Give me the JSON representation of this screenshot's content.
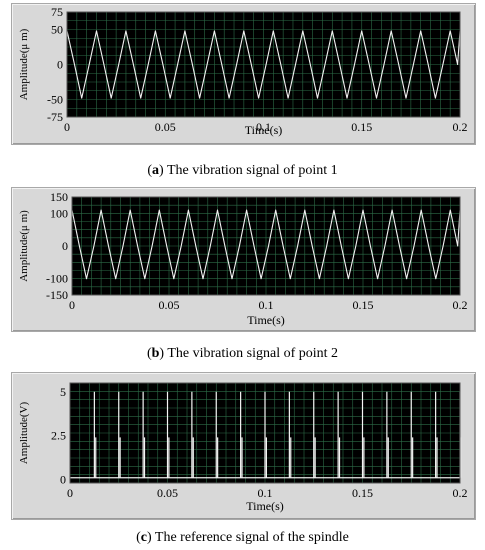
{
  "chart_data": [
    {
      "type": "line",
      "caption_tag": "a",
      "caption_text": "The vibration signal of point 1",
      "xlabel": "Time(s)",
      "ylabel": "Amplitude(μ m)",
      "xlim": [
        0,
        0.2
      ],
      "ylim": [
        -75,
        75
      ],
      "xticks": [
        "0",
        "0.05",
        "0.1",
        "0.15",
        "0.2"
      ],
      "yticks": [
        "75",
        "50",
        "0",
        "-50",
        "-75"
      ],
      "grid": true,
      "series": [
        {
          "x": [
            0,
            0.0038,
            0.0075,
            0.0113,
            0.015,
            0.0188,
            0.0225,
            0.0263,
            0.03,
            0.0338,
            0.0375,
            0.0413,
            0.045,
            0.0488,
            0.0525,
            0.0563,
            0.06,
            0.0638,
            0.0675,
            0.0713,
            0.075,
            0.0788,
            0.0825,
            0.0863,
            0.09,
            0.0938,
            0.0975,
            0.1013,
            0.105,
            0.1088,
            0.1125,
            0.1163,
            0.12,
            0.1238,
            0.1275,
            0.1313,
            0.135,
            0.1388,
            0.1425,
            0.1463,
            0.15,
            0.1538,
            0.1575,
            0.1613,
            0.165,
            0.1688,
            0.1725,
            0.1763,
            0.18,
            0.1838,
            0.1875,
            0.1913,
            0.195,
            0.1988,
            0.2
          ],
          "y": [
            48,
            0,
            -48,
            0,
            48,
            0,
            -48,
            0,
            48,
            0,
            -48,
            0,
            48,
            0,
            -48,
            0,
            48,
            0,
            -48,
            0,
            48,
            0,
            -48,
            0,
            48,
            0,
            -48,
            0,
            48,
            0,
            -48,
            0,
            48,
            0,
            -48,
            0,
            48,
            0,
            -48,
            0,
            48,
            0,
            -48,
            0,
            48,
            0,
            -48,
            0,
            48,
            0,
            -48,
            0,
            48,
            0,
            48
          ]
        }
      ]
    },
    {
      "type": "line",
      "caption_tag": "b",
      "caption_text": "The vibration signal of point 2",
      "xlabel": "Time(s)",
      "ylabel": "Amplitude(μ m)",
      "xlim": [
        0,
        0.2
      ],
      "ylim": [
        -150,
        150
      ],
      "xticks": [
        "0",
        "0.05",
        "0.1",
        "0.15",
        "0.2"
      ],
      "yticks": [
        "150",
        "100",
        "0",
        "-100",
        "-150"
      ],
      "grid": true,
      "series": [
        {
          "x": [
            0,
            0.0038,
            0.0075,
            0.0113,
            0.015,
            0.0188,
            0.0225,
            0.0263,
            0.03,
            0.0338,
            0.0375,
            0.0413,
            0.045,
            0.0488,
            0.0525,
            0.0563,
            0.06,
            0.0638,
            0.0675,
            0.0713,
            0.075,
            0.0788,
            0.0825,
            0.0863,
            0.09,
            0.0938,
            0.0975,
            0.1013,
            0.105,
            0.1088,
            0.1125,
            0.1163,
            0.12,
            0.1238,
            0.1275,
            0.1313,
            0.135,
            0.1388,
            0.1425,
            0.1463,
            0.15,
            0.1538,
            0.1575,
            0.1613,
            0.165,
            0.1688,
            0.1725,
            0.1763,
            0.18,
            0.1838,
            0.1875,
            0.1913,
            0.195,
            0.1988,
            0.2
          ],
          "y": [
            110,
            0,
            -100,
            0,
            110,
            0,
            -100,
            0,
            110,
            0,
            -100,
            0,
            110,
            0,
            -100,
            0,
            110,
            0,
            -100,
            0,
            110,
            0,
            -100,
            0,
            110,
            0,
            -100,
            0,
            110,
            0,
            -100,
            0,
            110,
            0,
            -100,
            0,
            110,
            0,
            -100,
            0,
            110,
            0,
            -100,
            0,
            110,
            0,
            -100,
            0,
            110,
            0,
            -100,
            0,
            110,
            0,
            110
          ]
        }
      ]
    },
    {
      "type": "line",
      "caption_tag": "c",
      "caption_text": "The reference signal of the spindle",
      "xlabel": "Time(s)",
      "ylabel": "Amplitude(V)",
      "xlim": [
        0,
        0.2
      ],
      "ylim": [
        -0.2,
        5.5
      ],
      "xticks": [
        "0",
        "0.05",
        "0.1",
        "0.15",
        "0.2"
      ],
      "yticks": [
        "5",
        "2.5",
        "0"
      ],
      "grid": true,
      "pulses": {
        "tall_x": [
          0.0125,
          0.025,
          0.0375,
          0.05,
          0.0625,
          0.075,
          0.0875,
          0.1,
          0.1125,
          0.125,
          0.1375,
          0.15,
          0.1625,
          0.175,
          0.1875,
          0.2
        ],
        "tall_y": 5,
        "short_x": [
          0.0127,
          0.0252,
          0.0377,
          0.0502,
          0.0627,
          0.0752,
          0.0877,
          0.1002,
          0.1127,
          0.1252,
          0.1377,
          0.1502,
          0.1627,
          0.1752,
          0.1877,
          0.1998
        ],
        "short_y": 2.4,
        "baseline_y": 0.1
      }
    }
  ]
}
